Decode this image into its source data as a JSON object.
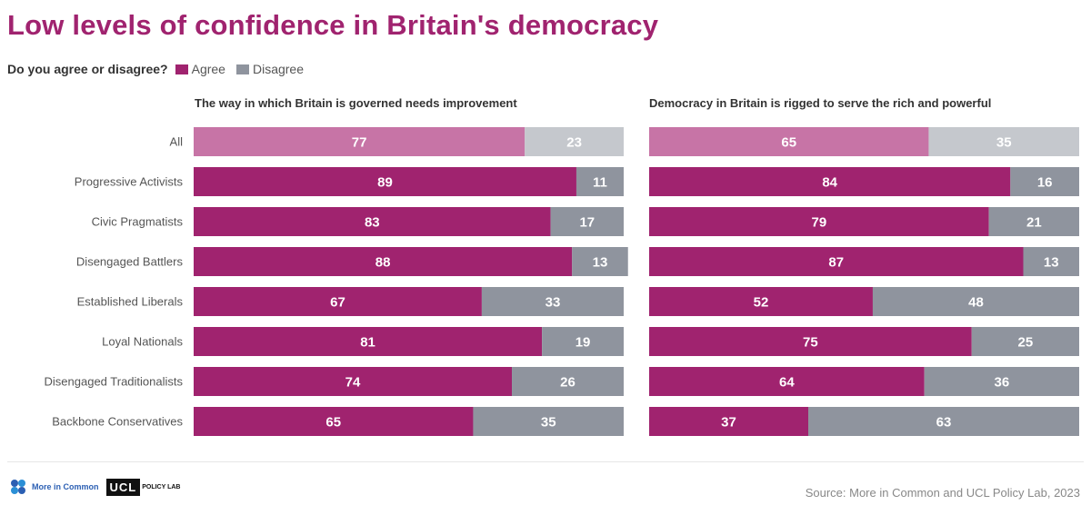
{
  "title": "Low levels of confidence in Britain's democracy",
  "legend": {
    "question": "Do you agree or disagree?",
    "items": [
      {
        "label": "Agree",
        "color": "#a0236f"
      },
      {
        "label": "Disagree",
        "color": "#8f949e"
      }
    ]
  },
  "highlight_color": "#c774a6",
  "highlight_disagree_color": "#c5c8cd",
  "source": "Source: More in Common and UCL Policy Lab, 2023",
  "logos": {
    "more_in_common": "More in Common",
    "ucl": "UCL",
    "ucl_sub": "POLICY LAB"
  },
  "chart_data": [
    {
      "type": "bar",
      "orientation": "horizontal",
      "stacked": true,
      "title": "The way in which Britain is governed needs improvement",
      "categories": [
        "All",
        "Progressive Activists",
        "Civic Pragmatists",
        "Disengaged Battlers",
        "Established Liberals",
        "Loyal Nationals",
        "Disengaged Traditionalists",
        "Backbone Conservatives"
      ],
      "series": [
        {
          "name": "Agree",
          "values": [
            77,
            89,
            83,
            88,
            67,
            81,
            74,
            65
          ]
        },
        {
          "name": "Disagree",
          "values": [
            23,
            11,
            17,
            13,
            33,
            19,
            26,
            35
          ]
        }
      ],
      "xlim": [
        0,
        100
      ]
    },
    {
      "type": "bar",
      "orientation": "horizontal",
      "stacked": true,
      "title": "Democracy in Britain is rigged to serve the rich and powerful",
      "categories": [
        "All",
        "Progressive Activists",
        "Civic Pragmatists",
        "Disengaged Battlers",
        "Established Liberals",
        "Loyal Nationals",
        "Disengaged Traditionalists",
        "Backbone Conservatives"
      ],
      "series": [
        {
          "name": "Agree",
          "values": [
            65,
            84,
            79,
            87,
            52,
            75,
            64,
            37
          ]
        },
        {
          "name": "Disagree",
          "values": [
            35,
            16,
            21,
            13,
            48,
            25,
            36,
            63
          ]
        }
      ],
      "xlim": [
        0,
        100
      ]
    }
  ]
}
